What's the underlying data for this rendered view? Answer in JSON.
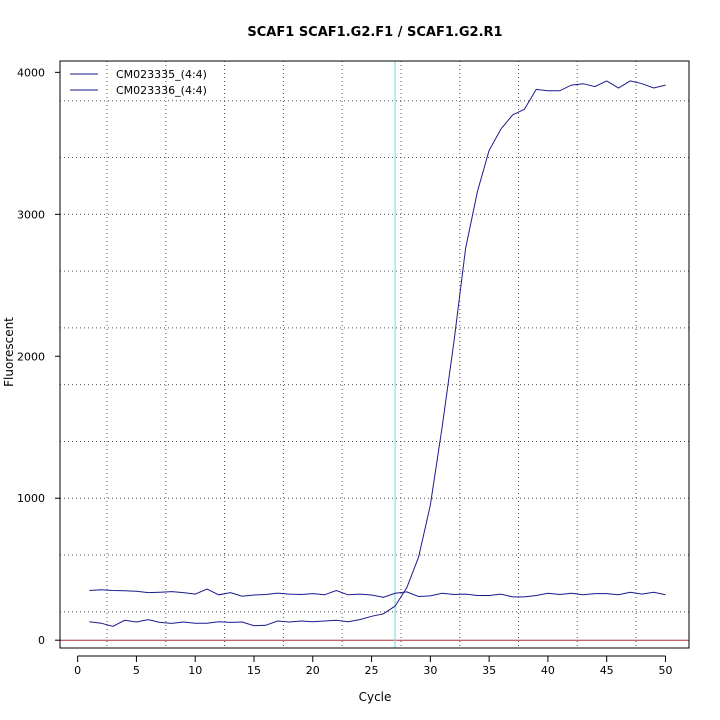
{
  "chart_data": {
    "type": "line",
    "title": "SCAF1  SCAF1.G2.F1 / SCAF1.G2.R1",
    "xlabel": "Cycle",
    "ylabel": "Fluorescent",
    "xlim": [
      -1.5,
      52
    ],
    "ylim": [
      -55,
      4080
    ],
    "x_ticks": [
      0,
      5,
      10,
      15,
      20,
      25,
      30,
      35,
      40,
      45,
      50
    ],
    "y_ticks": [
      0,
      1000,
      2000,
      3000,
      4000
    ],
    "grid": true,
    "legend_position": "top-left",
    "colors": {
      "series": "#1a1a8c",
      "threshold_line": "#7ee0e6",
      "baseline_line": "#b03030",
      "grid": "#555555",
      "axis": "#000000"
    },
    "threshold_cycle": 27,
    "baseline_y": 0,
    "series": [
      {
        "name": "CM023335_(4:4)",
        "x": [
          1,
          2,
          3,
          4,
          5,
          6,
          7,
          8,
          9,
          10,
          11,
          12,
          13,
          14,
          15,
          16,
          17,
          18,
          19,
          20,
          21,
          22,
          23,
          24,
          25,
          26,
          27,
          28,
          29,
          30,
          31,
          32,
          33,
          34,
          35,
          36,
          37,
          38,
          39,
          40,
          41,
          42,
          43,
          44,
          45,
          46,
          47,
          48,
          49,
          50
        ],
        "values": [
          350,
          355,
          350,
          348,
          345,
          335,
          338,
          342,
          335,
          325,
          360,
          320,
          335,
          310,
          318,
          322,
          332,
          325,
          322,
          328,
          320,
          350,
          320,
          325,
          318,
          302,
          330,
          340,
          308,
          312,
          330,
          322,
          325,
          315,
          315,
          325,
          305,
          305,
          315,
          330,
          322,
          330,
          320,
          328,
          328,
          320,
          338,
          325,
          338,
          320
        ]
      },
      {
        "name": "CM023336_(4:4)",
        "x": [
          1,
          2,
          3,
          4,
          5,
          6,
          7,
          8,
          9,
          10,
          11,
          12,
          13,
          14,
          15,
          16,
          17,
          18,
          19,
          20,
          21,
          22,
          23,
          24,
          25,
          26,
          27,
          28,
          29,
          30,
          31,
          32,
          33,
          34,
          35,
          36,
          37,
          38,
          39,
          40,
          41,
          42,
          43,
          44,
          45,
          46,
          47,
          48,
          49,
          50
        ],
        "values": [
          130,
          120,
          98,
          140,
          128,
          145,
          125,
          118,
          128,
          120,
          120,
          130,
          125,
          128,
          102,
          105,
          135,
          128,
          135,
          130,
          135,
          140,
          130,
          145,
          168,
          185,
          240,
          370,
          585,
          950,
          1500,
          2100,
          2760,
          3160,
          3450,
          3600,
          3700,
          3740,
          3880,
          3870,
          3870,
          3910,
          3920,
          3900,
          3940,
          3890,
          3940,
          3920,
          3890,
          3910
        ]
      }
    ]
  }
}
